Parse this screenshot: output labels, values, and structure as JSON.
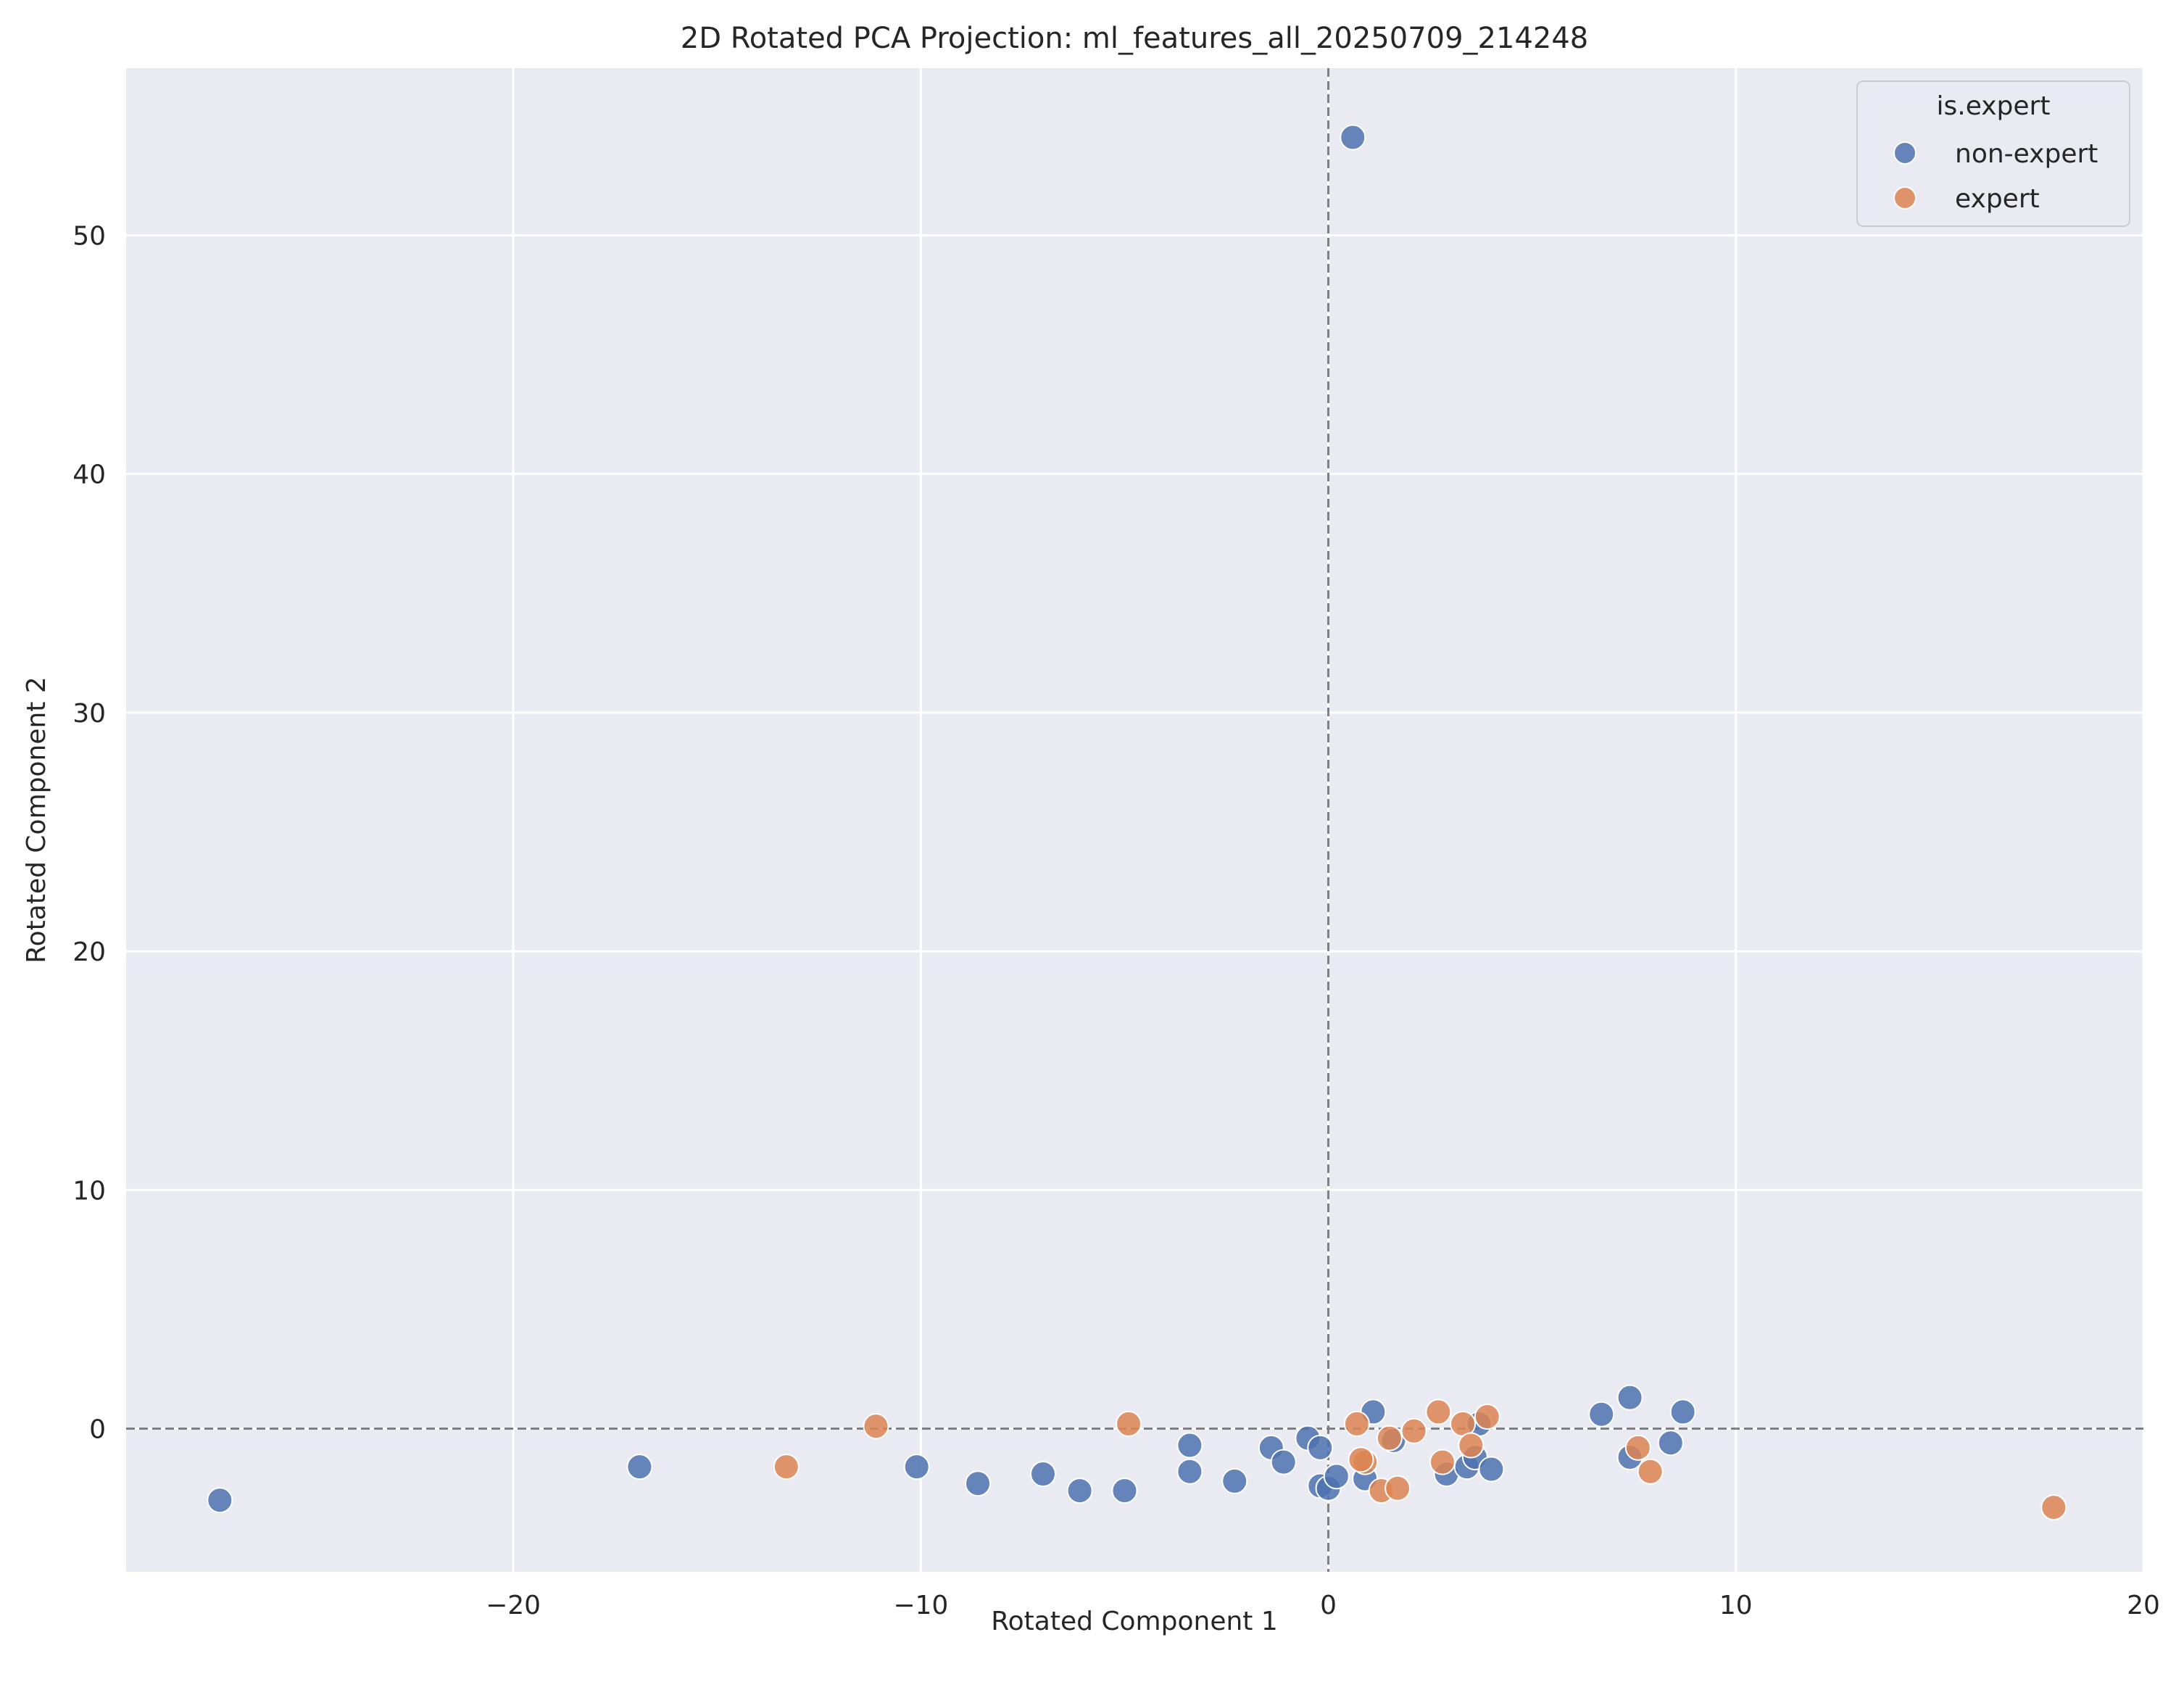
{
  "chart_data": {
    "type": "scatter",
    "title": "2D Rotated PCA Projection: ml_features_all_20250709_214248",
    "xlabel": "Rotated Component 1",
    "ylabel": "Rotated Component 2",
    "xlim": [
      -29.5,
      20
    ],
    "ylim": [
      -6.0,
      57.0
    ],
    "xticks": [
      -20,
      -10,
      0,
      10,
      20
    ],
    "yticks": [
      0,
      10,
      20,
      30,
      40,
      50
    ],
    "xtick_labels": [
      "−20",
      "−10",
      "0",
      "10",
      "20"
    ],
    "ytick_labels": [
      "0",
      "10",
      "20",
      "30",
      "40",
      "50"
    ],
    "grid": true,
    "reference_lines": {
      "x": 0,
      "y": 0,
      "style": "dashed"
    },
    "legend": {
      "title": "is.expert",
      "position": "top-right"
    },
    "series": [
      {
        "name": "non-expert",
        "color": "#4c72b0",
        "points": [
          [
            0.6,
            54.1
          ],
          [
            -27.2,
            -3.0
          ],
          [
            -16.9,
            -1.6
          ],
          [
            -10.1,
            -1.6
          ],
          [
            -8.6,
            -2.3
          ],
          [
            -7.0,
            -1.9
          ],
          [
            -6.1,
            -2.6
          ],
          [
            -5.0,
            -2.6
          ],
          [
            -3.4,
            -0.7
          ],
          [
            -3.4,
            -1.8
          ],
          [
            -2.3,
            -2.2
          ],
          [
            -1.4,
            -0.8
          ],
          [
            -1.1,
            -1.4
          ],
          [
            -0.5,
            -0.4
          ],
          [
            -0.2,
            -0.8
          ],
          [
            -0.2,
            -2.4
          ],
          [
            0.0,
            -2.5
          ],
          [
            0.2,
            -2.0
          ],
          [
            0.9,
            -2.1
          ],
          [
            1.1,
            0.7
          ],
          [
            1.6,
            -0.5
          ],
          [
            2.9,
            -1.9
          ],
          [
            3.4,
            -1.6
          ],
          [
            3.6,
            -1.2
          ],
          [
            3.7,
            0.2
          ],
          [
            4.0,
            -1.7
          ],
          [
            6.7,
            0.6
          ],
          [
            7.4,
            1.3
          ],
          [
            7.4,
            -1.2
          ],
          [
            8.4,
            -0.6
          ],
          [
            8.7,
            0.7
          ]
        ]
      },
      {
        "name": "expert",
        "color": "#dd8452",
        "points": [
          [
            17.8,
            -3.3
          ],
          [
            -13.3,
            -1.6
          ],
          [
            -11.1,
            0.1
          ],
          [
            -4.9,
            0.2
          ],
          [
            0.7,
            0.2
          ],
          [
            0.9,
            -1.4
          ],
          [
            1.3,
            -2.6
          ],
          [
            1.5,
            -0.4
          ],
          [
            1.7,
            -2.5
          ],
          [
            2.1,
            -0.1
          ],
          [
            2.7,
            0.7
          ],
          [
            2.8,
            -1.4
          ],
          [
            3.3,
            0.2
          ],
          [
            3.5,
            -0.7
          ],
          [
            3.9,
            0.5
          ],
          [
            7.6,
            -0.8
          ],
          [
            7.9,
            -1.8
          ],
          [
            0.8,
            -1.3
          ]
        ]
      }
    ]
  }
}
